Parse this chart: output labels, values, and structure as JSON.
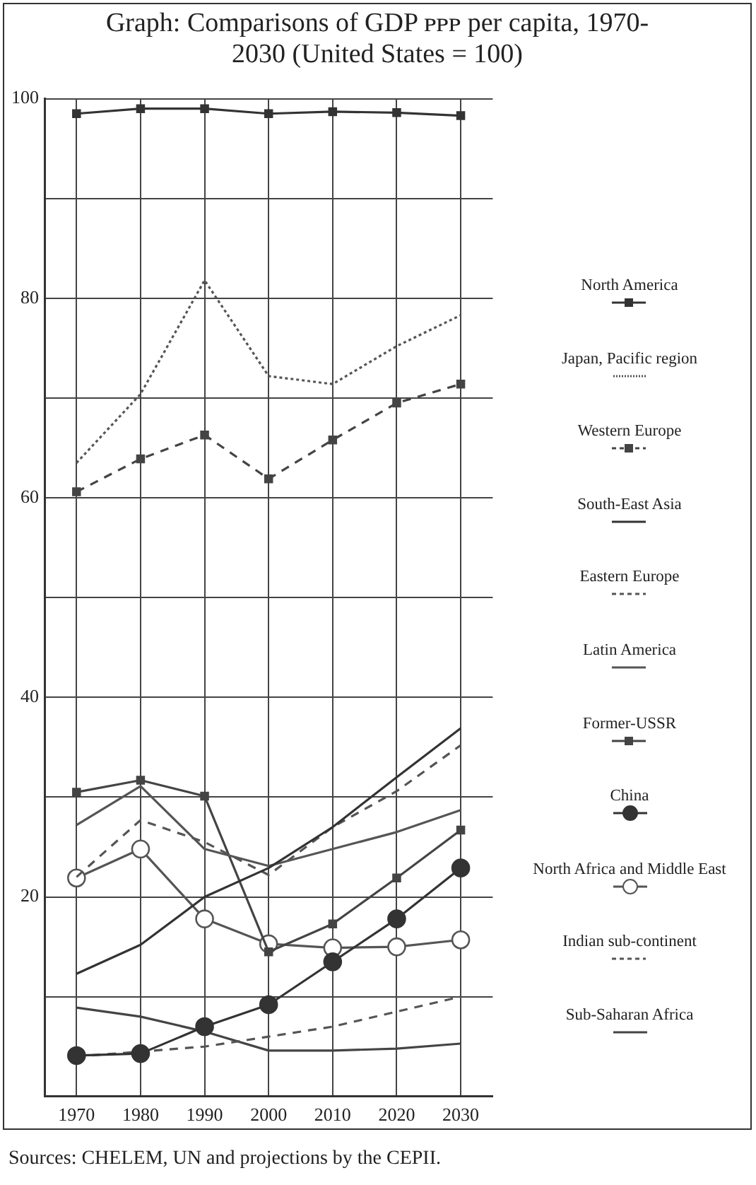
{
  "chart_data": {
    "type": "line",
    "title": "Graph: Comparisons of GDP ᴘᴘᴘ per capita, 1970-2030 (United States = 100)",
    "categories": [
      "1970",
      "1980",
      "1990",
      "2000",
      "2010",
      "2020",
      "2030"
    ],
    "series": [
      {
        "name": "North America",
        "color": "#333333",
        "marker": "square",
        "line_style": "solid",
        "values": [
          98.5,
          99,
          99,
          98.5,
          98.7,
          98.6,
          98.3
        ]
      },
      {
        "name": "Japan, Pacific region",
        "color": "#555555",
        "marker": "none",
        "line_style": "dotted",
        "values": [
          63.5,
          70.4,
          81.8,
          72.2,
          71.4,
          75.2,
          78.3
        ]
      },
      {
        "name": "Western Europe",
        "color": "#444444",
        "marker": "square",
        "line_style": "dashed",
        "values": [
          60.6,
          63.9,
          66.3,
          61.9,
          65.8,
          69.5,
          71.4
        ]
      },
      {
        "name": "South-East Asia",
        "color": "#333333",
        "marker": "none",
        "line_style": "solid",
        "values": [
          12.3,
          15.2,
          20,
          22.9,
          27,
          32,
          36.9
        ]
      },
      {
        "name": "Eastern Europe",
        "color": "#555555",
        "marker": "none",
        "line_style": "dashed",
        "values": [
          22,
          27.7,
          25.5,
          22.2,
          27,
          30.6,
          35.2
        ]
      },
      {
        "name": "Latin America",
        "color": "#555555",
        "marker": "none",
        "line_style": "solid",
        "values": [
          27.2,
          31.1,
          24.8,
          23.1,
          24.8,
          26.5,
          28.7
        ]
      },
      {
        "name": "Former-USSR",
        "color": "#444444",
        "marker": "square",
        "line_style": "solid",
        "values": [
          30.5,
          31.7,
          30.1,
          14.5,
          17.3,
          21.9,
          26.7
        ]
      },
      {
        "name": "China",
        "color": "#333333",
        "marker": "circle",
        "line_style": "solid",
        "values": [
          4.1,
          4.3,
          7,
          9.2,
          13.5,
          17.8,
          22.9
        ]
      },
      {
        "name": "North Africa and Middle East",
        "color": "#555555",
        "marker": "circle-open",
        "line_style": "solid",
        "values": [
          21.9,
          24.8,
          17.8,
          15.3,
          14.9,
          15,
          15.7
        ]
      },
      {
        "name": "Indian sub-continent",
        "color": "#555555",
        "marker": "none",
        "line_style": "dashed",
        "values": [
          4,
          4.5,
          5,
          6,
          7,
          8.5,
          10
        ]
      },
      {
        "name": "Sub-Saharan Africa",
        "color": "#444444",
        "marker": "none",
        "line_style": "solid",
        "values": [
          8.9,
          8,
          6.5,
          4.6,
          4.6,
          4.8,
          5.3
        ]
      }
    ],
    "ylim": [
      0,
      100
    ],
    "yticks": [
      {
        "value": 10,
        "label": null
      },
      20,
      {
        "value": 30,
        "label": null
      },
      40,
      {
        "value": 50,
        "label": null
      },
      60,
      {
        "value": 70,
        "label": null
      },
      80,
      {
        "value": 90,
        "label": null
      },
      100
    ],
    "grid": true,
    "legend": "right",
    "annotations": [
      "Sources: CHELEM, UN and projections by the CEPII."
    ]
  }
}
